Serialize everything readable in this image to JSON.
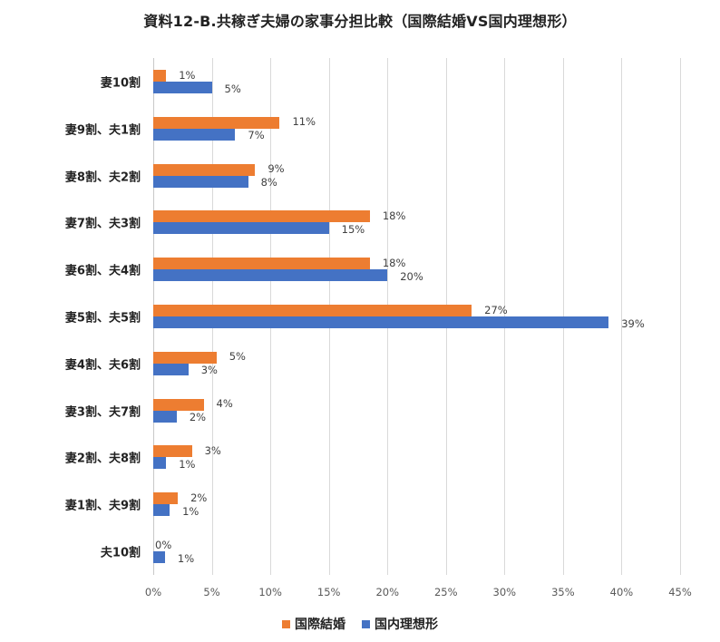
{
  "chart_data": {
    "type": "bar",
    "orientation": "horizontal",
    "title": "資料12-B.共稼ぎ夫婦の家事分担比較（国際結婚VS国内理想形）",
    "xlabel": "",
    "ylabel": "",
    "categories": [
      "妻10割",
      "妻9割、夫1割",
      "妻8割、夫2割",
      "妻7割、夫3割",
      "妻6割、夫4割",
      "妻5割、夫5割",
      "妻4割、夫6割",
      "妻3割、夫7割",
      "妻2割、夫8割",
      "妻1割、夫9割",
      "夫10割"
    ],
    "series": [
      {
        "name": "国際結婚",
        "color": "#ed7d31",
        "values": [
          1,
          11,
          9,
          18,
          18,
          27,
          5,
          4,
          3,
          2,
          0
        ],
        "labels": [
          "1%",
          "11%",
          "9%",
          "18%",
          "18%",
          "27%",
          "5%",
          "4%",
          "3%",
          "2%",
          "0%"
        ]
      },
      {
        "name": "国内理想形",
        "color": "#4472c4",
        "values": [
          5,
          7,
          8,
          15,
          20,
          39,
          3,
          2,
          1,
          1,
          1
        ],
        "labels": [
          "5%",
          "7%",
          "8%",
          "15%",
          "20%",
          "39%",
          "3%",
          "2%",
          "1%",
          "1%",
          "1%"
        ]
      }
    ],
    "bar_lengths_estimated": {
      "国際結婚": [
        1.1,
        10.8,
        8.7,
        18.5,
        18.5,
        27.2,
        5.4,
        4.3,
        3.3,
        2.1,
        0
      ],
      "国内理想形": [
        5.0,
        7.0,
        8.1,
        15.0,
        20.0,
        38.9,
        3.0,
        2.0,
        1.1,
        1.4,
        1.0
      ]
    },
    "xlim": [
      0,
      45
    ],
    "xticks": [
      "0%",
      "5%",
      "10%",
      "15%",
      "20%",
      "25%",
      "30%",
      "35%",
      "40%",
      "45%"
    ],
    "grid": true,
    "legend_position": "bottom"
  }
}
